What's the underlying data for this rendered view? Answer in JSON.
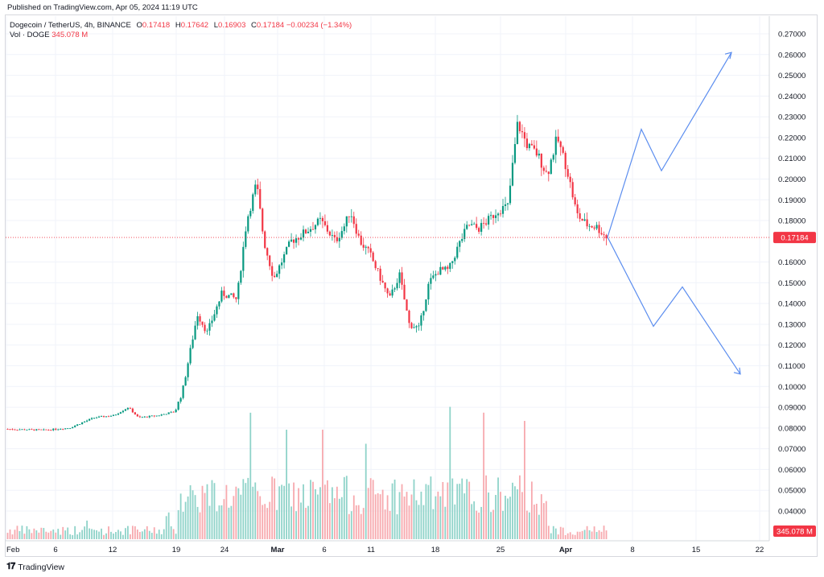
{
  "published": "Published on TradingView.com, Apr 05, 2024 11:19 UTC",
  "legend": {
    "title": "Dogecoin / TetherUS, 4h, BINANCE",
    "o_label": "O",
    "o": "0.17418",
    "h_label": "H",
    "h": "0.17642",
    "l_label": "L",
    "l": "0.16903",
    "c_label": "C",
    "c": "0.17184",
    "change": "−0.00234 (−1.34%)",
    "vol_label": "Vol · DOGE",
    "vol": "345.078 M"
  },
  "price_badge": "0.17184",
  "volume_badge": "345.078 M",
  "footer_brand": "TradingView",
  "colors": {
    "up": "#089981",
    "down": "#f23645",
    "projection": "#5b8def",
    "badge": "#f23645"
  },
  "chart_data": {
    "type": "candlestick",
    "y_ticks": [
      "0.27000",
      "0.26000",
      "0.25000",
      "0.24000",
      "0.23000",
      "0.22000",
      "0.21000",
      "0.20000",
      "0.19000",
      "0.18000",
      "0.16000",
      "0.15000",
      "0.14000",
      "0.13000",
      "0.12000",
      "0.11000",
      "0.10000",
      "0.09000",
      "0.08000",
      "0.07000",
      "0.06000",
      "0.05000",
      "0.04000"
    ],
    "x_ticks": [
      "Feb",
      "6",
      "12",
      "19",
      "24",
      "Mar",
      "6",
      "11",
      "18",
      "25",
      "Apr",
      "8",
      "15",
      "22"
    ],
    "ylim": [
      0.035,
      0.275
    ],
    "last_price": 0.17184,
    "price_path": [
      [
        0,
        0.0795
      ],
      [
        0.08,
        0.079
      ],
      [
        0.13,
        0.08
      ],
      [
        0.18,
        0.085
      ],
      [
        0.22,
        0.086
      ],
      [
        0.25,
        0.09
      ],
      [
        0.27,
        0.085
      ],
      [
        0.31,
        0.086
      ],
      [
        0.345,
        0.088
      ],
      [
        0.36,
        0.098
      ],
      [
        0.39,
        0.135
      ],
      [
        0.41,
        0.126
      ],
      [
        0.44,
        0.145
      ],
      [
        0.47,
        0.142
      ],
      [
        0.49,
        0.18
      ],
      [
        0.51,
        0.198
      ],
      [
        0.525,
        0.17
      ],
      [
        0.545,
        0.152
      ],
      [
        0.58,
        0.17
      ],
      [
        0.6,
        0.173
      ],
      [
        0.64,
        0.18
      ],
      [
        0.67,
        0.17
      ],
      [
        0.69,
        0.178
      ],
      [
        0.7,
        0.185
      ],
      [
        0.72,
        0.17
      ],
      [
        0.74,
        0.164
      ],
      [
        0.78,
        0.142
      ],
      [
        0.8,
        0.154
      ],
      [
        0.82,
        0.13
      ],
      [
        0.84,
        0.128
      ],
      [
        0.86,
        0.15
      ],
      [
        0.88,
        0.156
      ],
      [
        0.9,
        0.156
      ],
      [
        0.92,
        0.168
      ],
      [
        0.94,
        0.178
      ],
      [
        0.96,
        0.176
      ],
      [
        0.98,
        0.18
      ],
      [
        1.0,
        0.185
      ],
      [
        1.02,
        0.187
      ],
      [
        1.04,
        0.227
      ],
      [
        1.06,
        0.216
      ],
      [
        1.08,
        0.212
      ],
      [
        1.1,
        0.202
      ],
      [
        1.12,
        0.22
      ],
      [
        1.14,
        0.205
      ],
      [
        1.16,
        0.183
      ],
      [
        1.18,
        0.178
      ],
      [
        1.2,
        0.177
      ],
      [
        1.22,
        0.172
      ]
    ],
    "projection_up": [
      [
        0.172
      ],
      [
        0.224
      ],
      [
        0.204
      ],
      [
        0.261
      ]
    ],
    "projection_down": [
      [
        0.172
      ],
      [
        0.129
      ],
      [
        0.148
      ],
      [
        0.106
      ]
    ]
  }
}
